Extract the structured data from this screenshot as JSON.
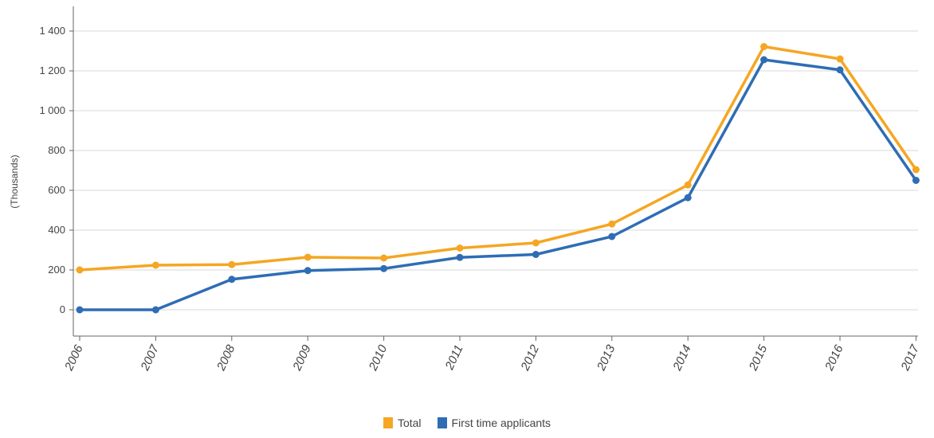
{
  "chart_data": {
    "type": "line",
    "title": "",
    "xlabel": "",
    "ylabel": "(Thousands)",
    "categories": [
      "2006",
      "2007",
      "2008",
      "2009",
      "2010",
      "2011",
      "2012",
      "2013",
      "2014",
      "2015",
      "2016",
      "2017"
    ],
    "y_ticks": [
      "0",
      "200",
      "400",
      "600",
      "800",
      "1 000",
      "1 200",
      "1 400"
    ],
    "ylim": [
      -130,
      1520
    ],
    "grid": true,
    "legend_position": "bottom-center",
    "series": [
      {
        "name": "Total",
        "color": "#F5A623",
        "values": [
          200,
          224,
          227,
          264,
          260,
          310,
          336,
          431,
          627,
          1322,
          1260,
          704
        ]
      },
      {
        "name": "First time applicants",
        "color": "#2E6DB4",
        "values": [
          0,
          0,
          153,
          197,
          207,
          263,
          278,
          368,
          563,
          1256,
          1205,
          650
        ]
      }
    ]
  }
}
